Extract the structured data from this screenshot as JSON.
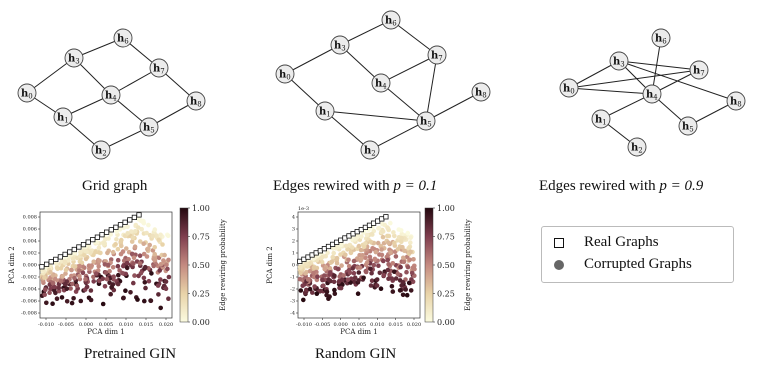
{
  "graphs": [
    {
      "caption": "Grid graph",
      "nodes": [
        {
          "id": "h",
          "sub": "0"
        },
        {
          "id": "h",
          "sub": "1"
        },
        {
          "id": "h",
          "sub": "2"
        },
        {
          "id": "h",
          "sub": "3"
        },
        {
          "id": "h",
          "sub": "4"
        },
        {
          "id": "h",
          "sub": "5"
        },
        {
          "id": "h",
          "sub": "6"
        },
        {
          "id": "h",
          "sub": "7"
        },
        {
          "id": "h",
          "sub": "8"
        }
      ],
      "edges": [
        [
          0,
          3
        ],
        [
          0,
          1
        ],
        [
          1,
          2
        ],
        [
          3,
          6
        ],
        [
          3,
          4
        ],
        [
          1,
          4
        ],
        [
          2,
          5
        ],
        [
          4,
          5
        ],
        [
          4,
          7
        ],
        [
          6,
          7
        ],
        [
          7,
          8
        ],
        [
          5,
          8
        ]
      ]
    },
    {
      "caption_prefix": "Edges rewired with ",
      "caption_math": "p = 0.1",
      "edges": [
        [
          0,
          3
        ],
        [
          0,
          1
        ],
        [
          1,
          2
        ],
        [
          3,
          6
        ],
        [
          3,
          4
        ],
        [
          6,
          7
        ],
        [
          4,
          5
        ],
        [
          4,
          7
        ],
        [
          7,
          5
        ],
        [
          1,
          5
        ],
        [
          2,
          5
        ],
        [
          5,
          8
        ]
      ]
    },
    {
      "caption_prefix": "Edges rewired with ",
      "caption_math": "p = 0.9",
      "edges": [
        [
          0,
          3
        ],
        [
          0,
          4
        ],
        [
          3,
          4
        ],
        [
          3,
          7
        ],
        [
          3,
          8
        ],
        [
          4,
          6
        ],
        [
          4,
          7
        ],
        [
          4,
          1
        ],
        [
          1,
          2
        ],
        [
          0,
          7
        ],
        [
          4,
          5
        ],
        [
          5,
          8
        ]
      ]
    }
  ],
  "legend": [
    {
      "marker": "square",
      "label": "Real Graphs"
    },
    {
      "marker": "circle",
      "label": "Corrupted Graphs"
    }
  ],
  "chart_data": [
    {
      "type": "scatter",
      "title": "Pretrained GIN",
      "xlabel": "PCA dim 1",
      "ylabel": "PCA dim 2",
      "xticks": [
        "-0.010",
        "-0.005",
        "0.000",
        "0.005",
        "0.010",
        "0.015",
        "0.020"
      ],
      "yticks": [
        "0.008",
        "0.006",
        "0.004",
        "0.002",
        "0.000",
        "-0.002",
        "-0.004",
        "-0.006",
        "-0.008"
      ],
      "xlim": [
        -0.013,
        0.021
      ],
      "ylim": [
        -0.0088,
        0.0092
      ],
      "colorbar": {
        "label": "Edge rewiring probability",
        "ticks": [
          "1.00",
          "0.75",
          "0.50",
          "0.25",
          "0.00"
        ],
        "range": [
          0,
          1
        ]
      },
      "real_graphs": {
        "x_start": -0.0125,
        "y_start": -0.0001,
        "x_end": 0.0125,
        "y_end": 0.0087,
        "count": 22
      },
      "corrupted_graphs": {
        "x_range": [
          -0.0125,
          0.0205
        ],
        "y_range": [
          -0.008,
          0.0085
        ],
        "probability_range": [
          0,
          1
        ]
      }
    },
    {
      "type": "scatter",
      "title": "Random GIN",
      "xlabel": "PCA dim 1",
      "ylabel": "PCA dim 2",
      "scale_note": "1e-3",
      "xticks": [
        "-0.010",
        "-0.005",
        "0.000",
        "0.005",
        "0.010",
        "0.015",
        "0.020"
      ],
      "yticks": [
        "4",
        "3",
        "2",
        "1",
        "0",
        "-1",
        "-2",
        "-3",
        "-4"
      ],
      "xlim": [
        -0.013,
        0.021
      ],
      "ylim": [
        -4.4,
        4.4
      ],
      "colorbar": {
        "label": "Edge rewiring probability",
        "ticks": [
          "1.00",
          "0.75",
          "0.50",
          "0.25",
          "0.00"
        ],
        "range": [
          0,
          1
        ]
      },
      "real_graphs": {
        "x_start": -0.0125,
        "y_start": 0.3,
        "x_end": 0.0115,
        "y_end": 4.0,
        "count": 22
      },
      "corrupted_graphs": {
        "x_range": [
          -0.0125,
          0.0195
        ],
        "y_range": [
          -3.6,
          3.8
        ],
        "probability_range": [
          0,
          1
        ]
      }
    }
  ]
}
